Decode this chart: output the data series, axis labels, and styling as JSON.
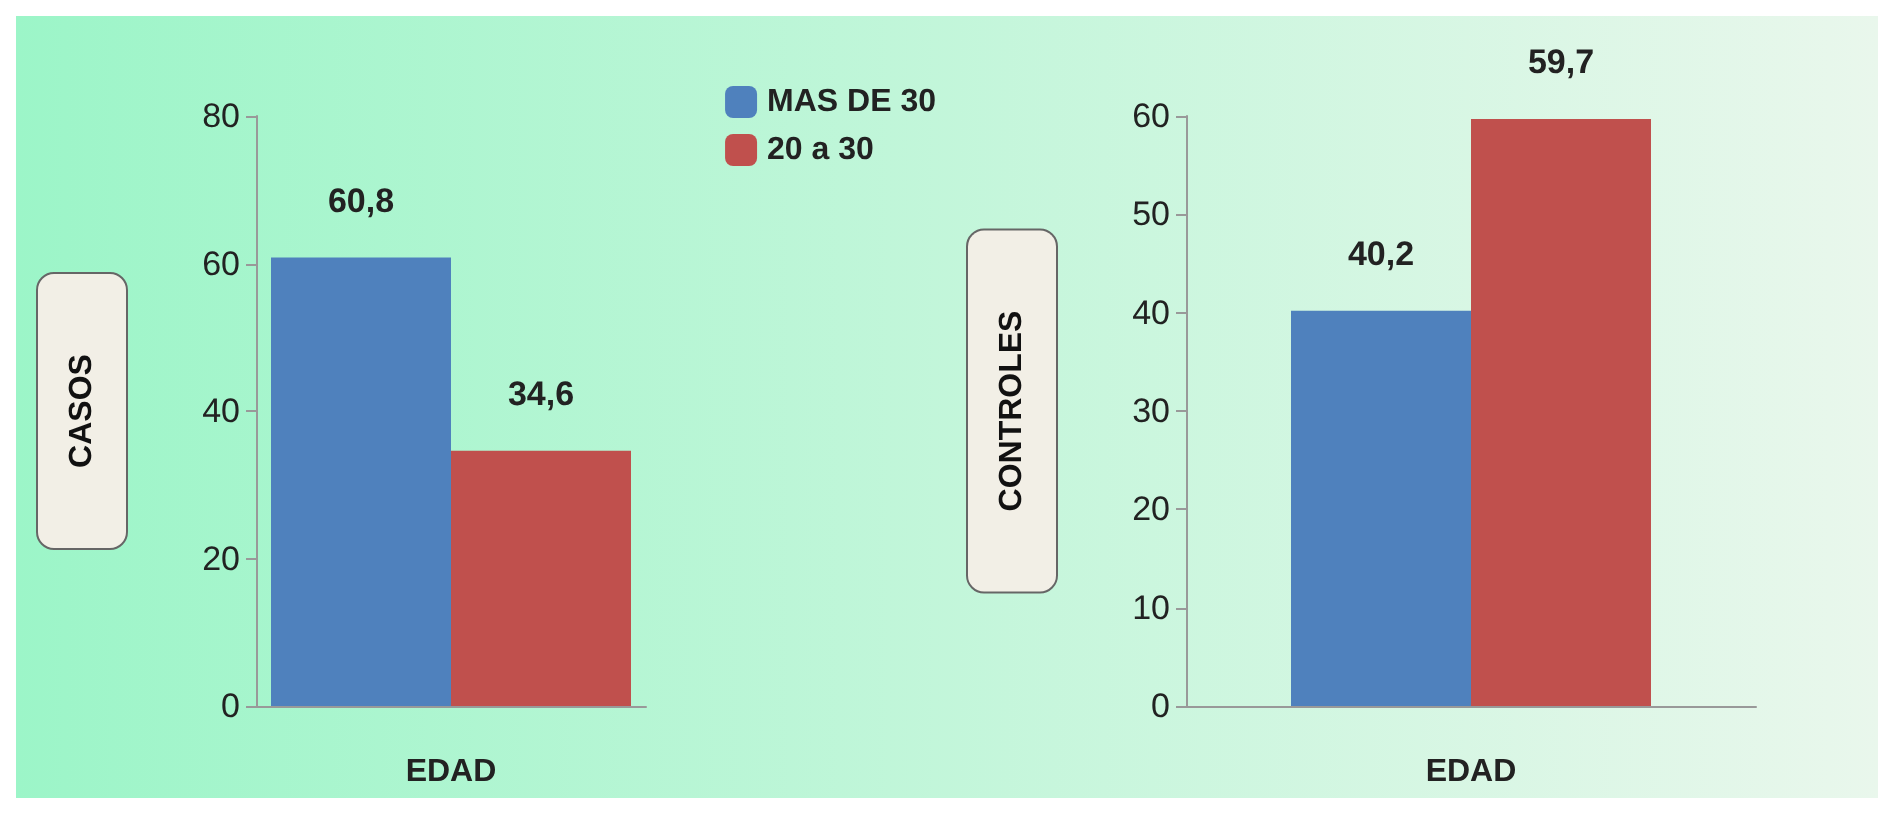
{
  "chart_data": [
    {
      "type": "bar",
      "categories": [
        null
      ],
      "xlabel": "EDAD",
      "ylabel": "CASOS",
      "ylim": [
        0,
        80
      ],
      "yticks": [
        0,
        20,
        40,
        60,
        80
      ],
      "grid": false,
      "legend": "top right",
      "series": [
        {
          "name": "MAS DE 30",
          "color": "#4f81bd",
          "values": [
            60.8
          ],
          "value_labels": [
            "60,8"
          ]
        },
        {
          "name": "20 a 30",
          "color": "#c0504d",
          "values": [
            34.6
          ],
          "value_labels": [
            "34,6"
          ]
        }
      ]
    },
    {
      "type": "bar",
      "categories": [
        null
      ],
      "xlabel": "EDAD",
      "ylabel": "CONTROLES",
      "ylim": [
        0,
        60
      ],
      "yticks": [
        0,
        10,
        20,
        30,
        40,
        50,
        60
      ],
      "grid": false,
      "legend": false,
      "series": [
        {
          "color": "#4f81bd",
          "values": [
            40.2
          ],
          "value_labels": [
            "40,2"
          ]
        },
        {
          "color": "#c0504d",
          "values": [
            59.7
          ],
          "value_labels": [
            "59,7"
          ]
        }
      ]
    }
  ]
}
